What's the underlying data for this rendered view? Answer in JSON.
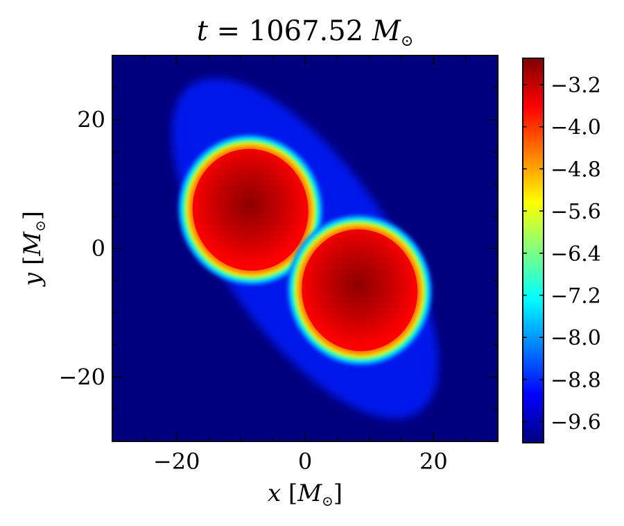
{
  "chart_data": {
    "type": "heatmap",
    "title": {
      "var": "t",
      "eq": " = 1067.52 ",
      "unit": "M",
      "sub": "⊙"
    },
    "xlabel": {
      "var": "x",
      "open": " [",
      "unit": "M",
      "sub": "⊙",
      "close": "]"
    },
    "ylabel": {
      "var": "y",
      "open": " [",
      "unit": "M",
      "sub": "⊙",
      "close": "]"
    },
    "xlim": [
      -30,
      30
    ],
    "ylim": [
      -30,
      30
    ],
    "xticks": [
      -20,
      0,
      20
    ],
    "yticks": [
      -20,
      0,
      20
    ],
    "xtick_labels": [
      "−20",
      "0",
      "20"
    ],
    "ytick_labels": [
      "−20",
      "0",
      "20"
    ],
    "minor_tick_step": 5,
    "grid": false,
    "colormap": "jet",
    "colorbar": {
      "range": [
        -10.0,
        -2.7
      ],
      "ticks": [
        -3.2,
        -4.0,
        -4.8,
        -5.6,
        -6.4,
        -7.2,
        -8.0,
        -8.8,
        -9.6
      ],
      "tick_labels": [
        "−3.2",
        "−4.0",
        "−4.8",
        "−5.6",
        "−6.4",
        "−7.2",
        "−8.0",
        "−8.8",
        "−9.6"
      ]
    },
    "background_value": -10.0,
    "features": [
      {
        "name": "upper-left-core",
        "center": [
          -8.5,
          6.0
        ],
        "core_radius": [
          9.0,
          9.5
        ],
        "peak": -2.8,
        "rim": -3.6,
        "halo_width": 2.2,
        "tilt_deg": -12
      },
      {
        "name": "lower-right-core",
        "center": [
          8.5,
          -6.5
        ],
        "core_radius": [
          9.0,
          9.5
        ],
        "peak": -2.8,
        "rim": -3.6,
        "halo_width": 2.2,
        "tilt_deg": -12
      }
    ],
    "envelope": {
      "center": [
        0.0,
        0.0
      ],
      "extent": [
        13.0,
        31.0
      ],
      "tilt_deg": -35,
      "value": -8.9
    }
  },
  "colors": {
    "background": "#ffffff",
    "axes_edge": "#000000",
    "colormap_stops": [
      "#00007f",
      "#0000ff",
      "#007fff",
      "#00ffff",
      "#7fff7f",
      "#ffff00",
      "#ff7f00",
      "#ff0000",
      "#7f0000"
    ]
  }
}
